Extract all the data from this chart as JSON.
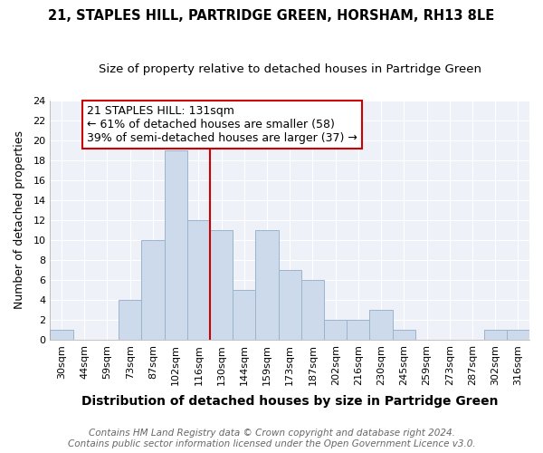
{
  "title": "21, STAPLES HILL, PARTRIDGE GREEN, HORSHAM, RH13 8LE",
  "subtitle": "Size of property relative to detached houses in Partridge Green",
  "xlabel": "Distribution of detached houses by size in Partridge Green",
  "ylabel": "Number of detached properties",
  "bin_labels": [
    "30sqm",
    "44sqm",
    "59sqm",
    "73sqm",
    "87sqm",
    "102sqm",
    "116sqm",
    "130sqm",
    "144sqm",
    "159sqm",
    "173sqm",
    "187sqm",
    "202sqm",
    "216sqm",
    "230sqm",
    "245sqm",
    "259sqm",
    "273sqm",
    "287sqm",
    "302sqm",
    "316sqm"
  ],
  "bin_counts": [
    1,
    0,
    0,
    4,
    10,
    19,
    12,
    11,
    5,
    11,
    7,
    6,
    2,
    2,
    3,
    1,
    0,
    0,
    0,
    1,
    1
  ],
  "bar_color": "#ccdaeb",
  "bar_edge_color": "#9ab4cc",
  "vline_x_index": 7,
  "vline_color": "#cc0000",
  "annotation_title": "21 STAPLES HILL: 131sqm",
  "annotation_line1": "← 61% of detached houses are smaller (58)",
  "annotation_line2": "39% of semi-detached houses are larger (37) →",
  "annotation_box_facecolor": "#ffffff",
  "annotation_box_edgecolor": "#cc0000",
  "ylim": [
    0,
    24
  ],
  "yticks": [
    0,
    2,
    4,
    6,
    8,
    10,
    12,
    14,
    16,
    18,
    20,
    22,
    24
  ],
  "footer1": "Contains HM Land Registry data © Crown copyright and database right 2024.",
  "footer2": "Contains public sector information licensed under the Open Government Licence v3.0.",
  "fig_facecolor": "#ffffff",
  "plot_facecolor": "#eef2f8",
  "grid_color": "#ffffff",
  "title_fontsize": 10.5,
  "subtitle_fontsize": 9.5,
  "xlabel_fontsize": 10,
  "ylabel_fontsize": 9,
  "tick_fontsize": 8,
  "annotation_fontsize": 9,
  "footer_fontsize": 7.5
}
